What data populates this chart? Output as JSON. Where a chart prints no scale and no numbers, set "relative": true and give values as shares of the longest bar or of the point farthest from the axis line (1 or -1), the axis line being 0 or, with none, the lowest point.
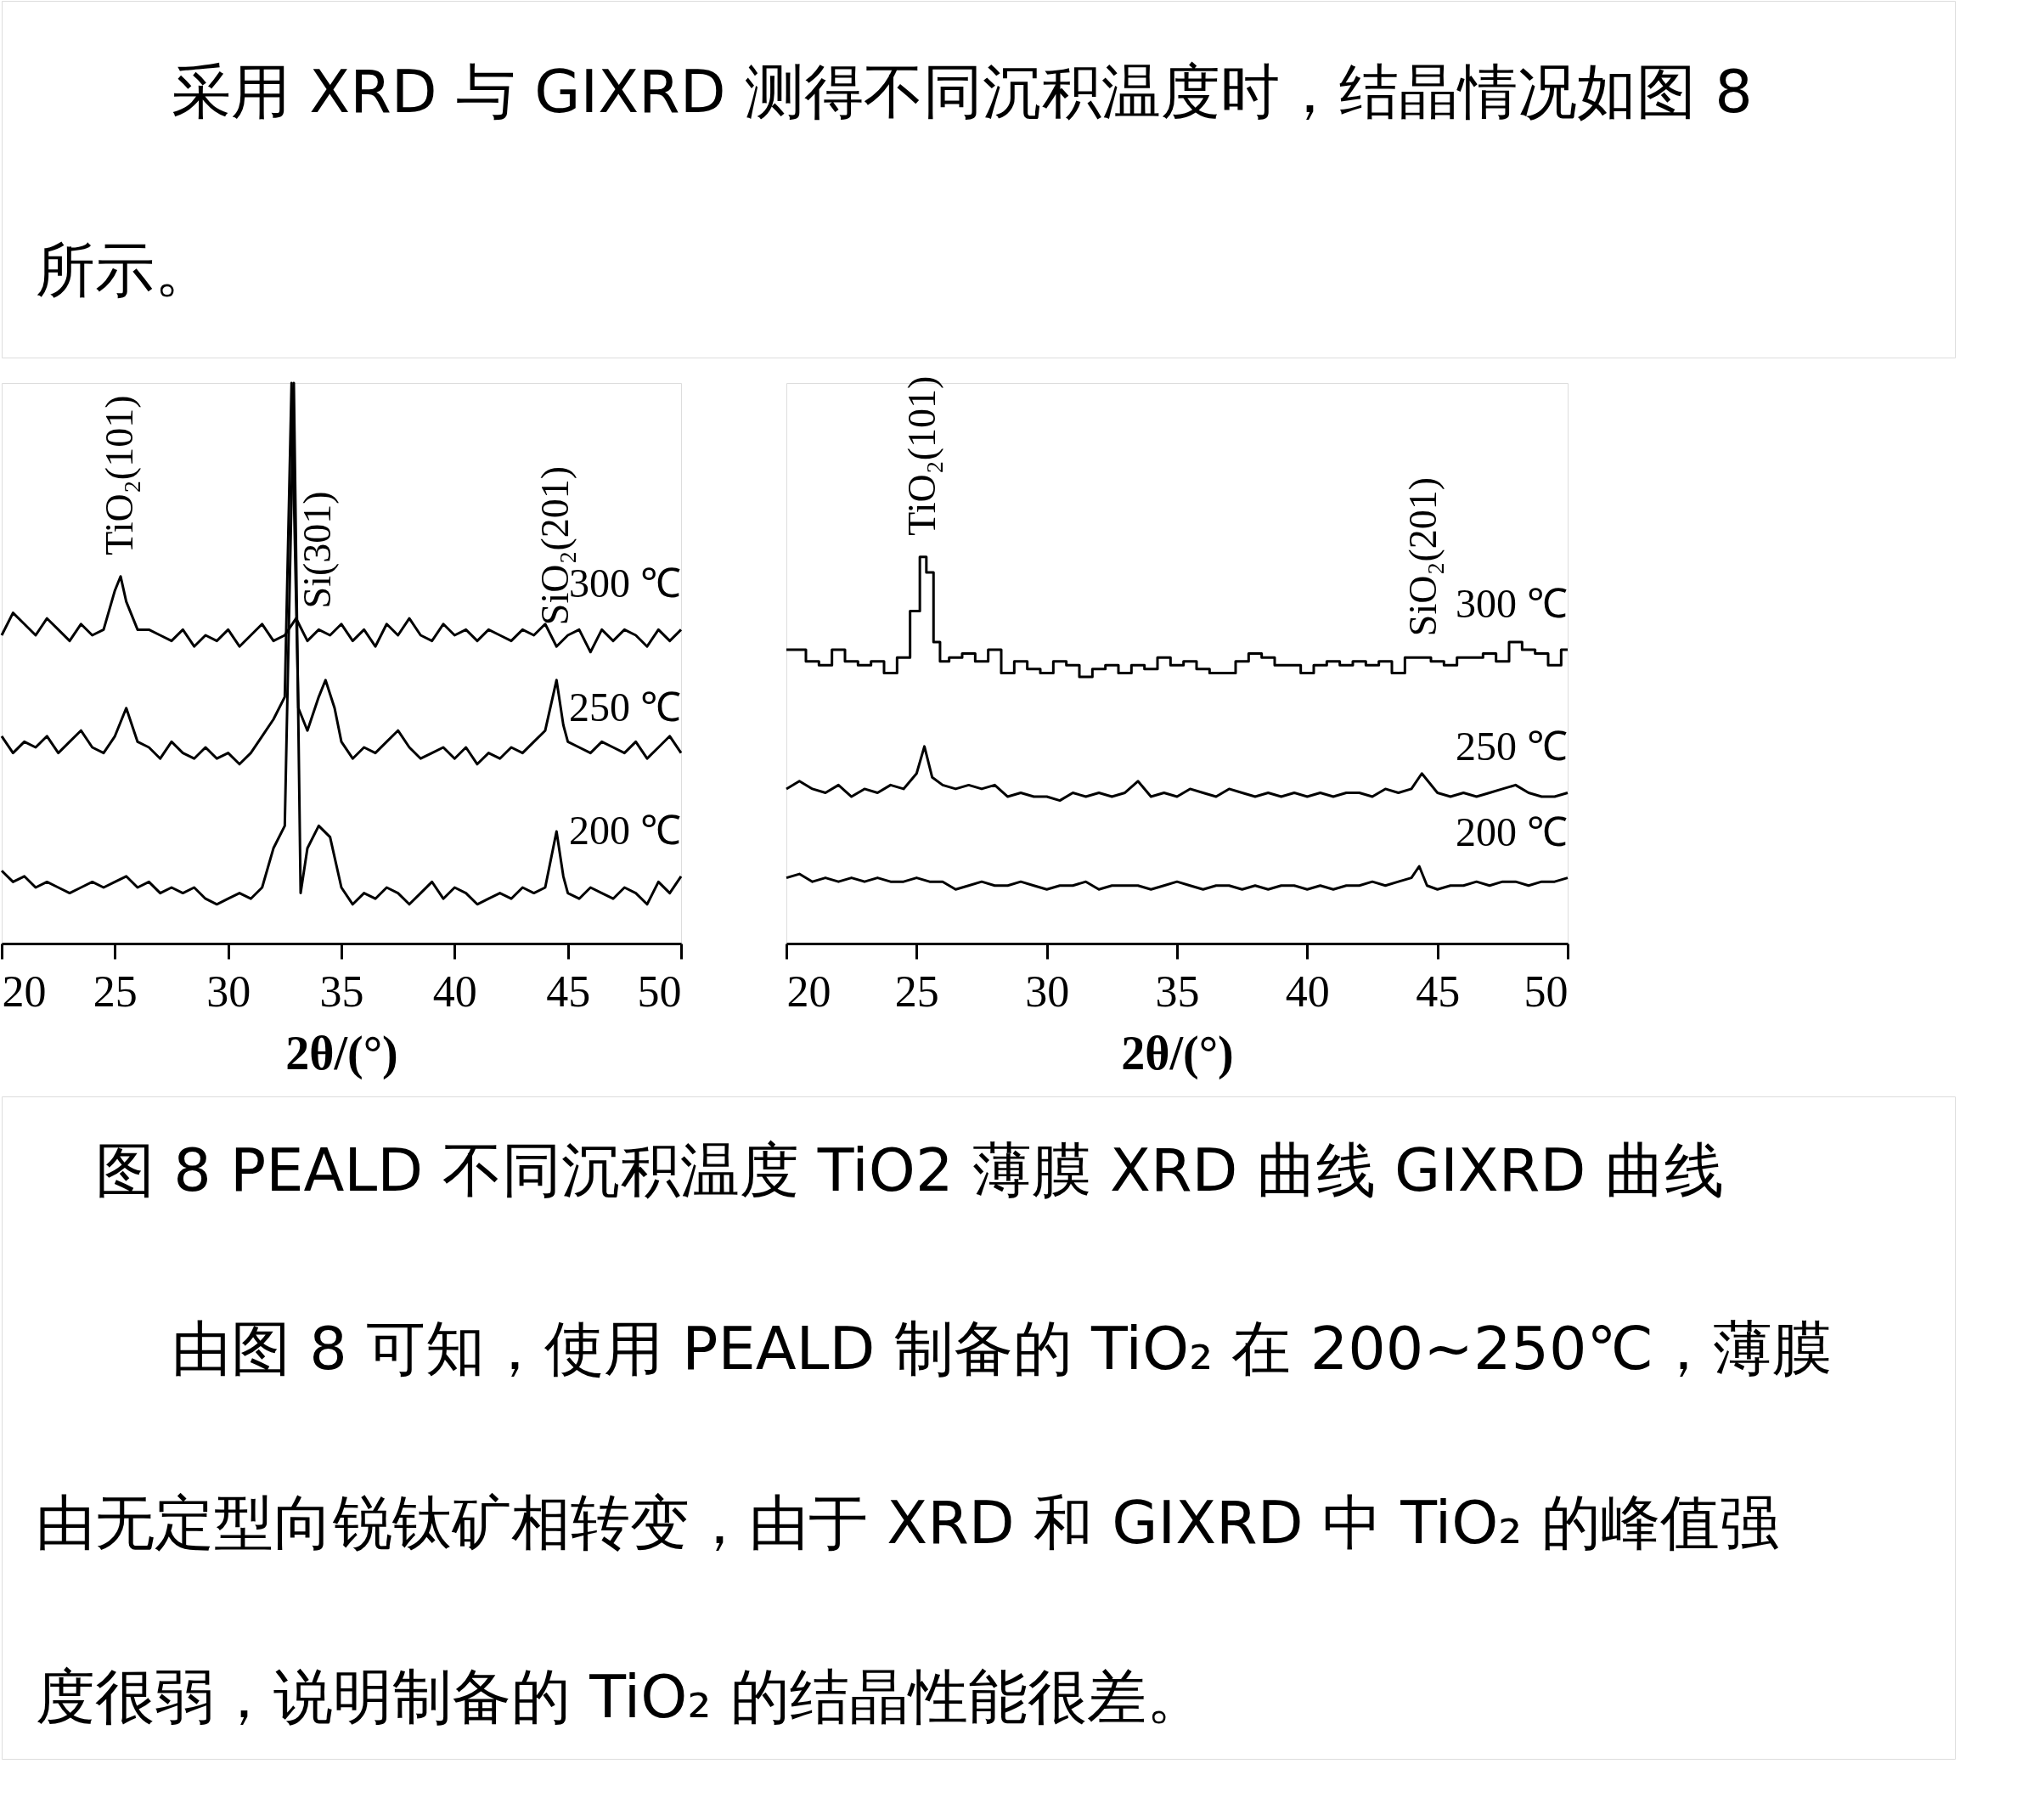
{
  "chart_data": [
    {
      "type": "line",
      "relative": true,
      "xlabel": "2θ/(°)",
      "xlim": [
        20,
        50
      ],
      "xticks": [
        20,
        25,
        30,
        35,
        40,
        45,
        50
      ],
      "series": [
        {
          "name": "300 ℃",
          "color": "#000000",
          "x": [
            20,
            20.5,
            21,
            21.5,
            22,
            22.5,
            23,
            23.5,
            24,
            24.5,
            25,
            25.25,
            25.5,
            26,
            26.5,
            27,
            27.5,
            28,
            28.5,
            29,
            29.5,
            30,
            30.5,
            31,
            31.5,
            32,
            32.5,
            33,
            33.5,
            34,
            34.5,
            35,
            35.5,
            36,
            36.5,
            37,
            37.5,
            38,
            38.5,
            39,
            39.5,
            40,
            40.5,
            41,
            41.5,
            42,
            42.5,
            43,
            43.5,
            44,
            44.5,
            45,
            45.5,
            46,
            46.5,
            47,
            47.5,
            48,
            48.5,
            49,
            49.5,
            50
          ],
          "values": [
            0.55,
            0.59,
            0.57,
            0.55,
            0.58,
            0.56,
            0.54,
            0.57,
            0.55,
            0.56,
            0.63,
            0.655,
            0.61,
            0.56,
            0.56,
            0.55,
            0.54,
            0.56,
            0.53,
            0.55,
            0.54,
            0.56,
            0.53,
            0.55,
            0.57,
            0.54,
            0.55,
            0.58,
            0.54,
            0.56,
            0.55,
            0.57,
            0.54,
            0.56,
            0.53,
            0.57,
            0.55,
            0.58,
            0.55,
            0.54,
            0.57,
            0.55,
            0.56,
            0.54,
            0.56,
            0.55,
            0.54,
            0.56,
            0.55,
            0.57,
            0.53,
            0.55,
            0.56,
            0.52,
            0.56,
            0.54,
            0.56,
            0.55,
            0.53,
            0.56,
            0.54,
            0.56
          ]
        },
        {
          "name": "250 ℃",
          "color": "#000000",
          "x": [
            20,
            20.5,
            21,
            21.5,
            22,
            22.5,
            23,
            23.5,
            24,
            24.5,
            25,
            25.5,
            26,
            26.5,
            27,
            27.5,
            28,
            28.5,
            29,
            29.5,
            30,
            30.5,
            31,
            31.5,
            32,
            32.5,
            32.8,
            33.1,
            33.5,
            34,
            34.3,
            34.7,
            35,
            35.5,
            36,
            36.5,
            37,
            37.5,
            38,
            38.5,
            39,
            39.5,
            40,
            40.5,
            41,
            41.5,
            42,
            42.5,
            43,
            43.5,
            44,
            44.5,
            44.8,
            45,
            45.5,
            46,
            46.5,
            47,
            47.5,
            48,
            48.5,
            49,
            49.5,
            50
          ],
          "values": [
            0.37,
            0.34,
            0.36,
            0.35,
            0.37,
            0.34,
            0.36,
            0.38,
            0.35,
            0.34,
            0.37,
            0.42,
            0.36,
            0.35,
            0.33,
            0.36,
            0.34,
            0.33,
            0.35,
            0.33,
            0.34,
            0.32,
            0.34,
            0.37,
            0.4,
            0.44,
            1.0,
            0.42,
            0.38,
            0.44,
            0.47,
            0.42,
            0.36,
            0.33,
            0.35,
            0.34,
            0.36,
            0.38,
            0.35,
            0.33,
            0.34,
            0.35,
            0.33,
            0.35,
            0.32,
            0.34,
            0.33,
            0.35,
            0.34,
            0.36,
            0.38,
            0.47,
            0.39,
            0.36,
            0.35,
            0.34,
            0.36,
            0.35,
            0.34,
            0.36,
            0.33,
            0.35,
            0.37,
            0.34
          ]
        },
        {
          "name": "200 ℃",
          "color": "#000000",
          "x": [
            20,
            20.5,
            21,
            21.5,
            22,
            22.5,
            23,
            23.5,
            24,
            24.5,
            25,
            25.5,
            26,
            26.5,
            27,
            27.5,
            28,
            28.5,
            29,
            29.5,
            30,
            30.5,
            31,
            31.5,
            32,
            32.5,
            32.9,
            33.2,
            33.5,
            34,
            34.5,
            35,
            35.5,
            36,
            36.5,
            37,
            37.5,
            38,
            38.5,
            39,
            39.5,
            40,
            40.5,
            41,
            41.5,
            42,
            42.5,
            43,
            43.5,
            44,
            44.5,
            44.8,
            45,
            45.5,
            46,
            46.5,
            47,
            47.5,
            48,
            48.5,
            49,
            49.5,
            50
          ],
          "values": [
            0.13,
            0.11,
            0.12,
            0.1,
            0.11,
            0.1,
            0.09,
            0.1,
            0.11,
            0.1,
            0.11,
            0.12,
            0.1,
            0.11,
            0.09,
            0.1,
            0.09,
            0.1,
            0.08,
            0.07,
            0.08,
            0.09,
            0.08,
            0.1,
            0.17,
            0.21,
            1.0,
            0.09,
            0.17,
            0.21,
            0.19,
            0.1,
            0.07,
            0.09,
            0.08,
            0.1,
            0.09,
            0.07,
            0.09,
            0.11,
            0.08,
            0.1,
            0.09,
            0.07,
            0.08,
            0.09,
            0.08,
            0.1,
            0.09,
            0.1,
            0.2,
            0.12,
            0.09,
            0.08,
            0.1,
            0.09,
            0.08,
            0.1,
            0.09,
            0.07,
            0.11,
            0.09,
            0.12
          ]
        }
      ],
      "annotations": [
        "采用 XRD 与 GIXRD 测得不同沉积温度时，结晶情况如图 8",
        "所示。",
        "图 8 PEALD 不同沉积温度 TiO2 薄膜 XRD 曲线  GIXRD 曲线",
        "由图 8 可知，使用 PEALD 制备的 TiO₂ 在 200~250℃，薄膜",
        "由无定型向锐钛矿相转变，由于 XRD 和 GIXRD 中 TiO₂ 的峰值强",
        "度很弱，说明制备的 TiO₂ 的结晶性能很差。",
        {
          "text": "TiO₂(101)",
          "x": 25.25,
          "y": 0.655
        },
        {
          "text": "Si(301)",
          "x": 34,
          "y": 0.56
        },
        {
          "text": "SiO₂(201)",
          "x": 44.5,
          "y": 0.53
        }
      ]
    },
    {
      "type": "line",
      "relative": true,
      "xlabel": "2θ/(°)",
      "xlim": [
        20,
        50
      ],
      "xticks": [
        20,
        25,
        30,
        35,
        40,
        45,
        50
      ],
      "series": [
        {
          "name": "300 ℃",
          "color": "#000000",
          "type": "step",
          "x": [
            20,
            20.5,
            21,
            21.5,
            22,
            22.5,
            23,
            23.5,
            24,
            24.5,
            25,
            25.25,
            25.5,
            25.8,
            26,
            26.5,
            27,
            27.5,
            28,
            28.5,
            29,
            29.5,
            30,
            30.5,
            31,
            31.5,
            32,
            32.5,
            33,
            33.5,
            34,
            34.5,
            35,
            35.5,
            36,
            36.5,
            37,
            37.5,
            38,
            38.5,
            39,
            39.5,
            40,
            40.5,
            41,
            41.5,
            42,
            42.5,
            43,
            43.5,
            44,
            44.5,
            45,
            45.5,
            46,
            46.5,
            47,
            47.5,
            48,
            48.5,
            49,
            49.5,
            50
          ],
          "values": [
            0.76,
            0.76,
            0.73,
            0.72,
            0.76,
            0.73,
            0.72,
            0.73,
            0.7,
            0.74,
            0.86,
            1.0,
            0.96,
            0.78,
            0.73,
            0.74,
            0.75,
            0.73,
            0.76,
            0.7,
            0.73,
            0.71,
            0.7,
            0.73,
            0.72,
            0.69,
            0.71,
            0.72,
            0.7,
            0.72,
            0.71,
            0.74,
            0.72,
            0.73,
            0.71,
            0.7,
            0.7,
            0.73,
            0.75,
            0.74,
            0.72,
            0.72,
            0.7,
            0.72,
            0.73,
            0.72,
            0.73,
            0.72,
            0.73,
            0.7,
            0.74,
            0.74,
            0.73,
            0.72,
            0.74,
            0.74,
            0.75,
            0.73,
            0.78,
            0.76,
            0.75,
            0.72,
            0.76
          ]
        },
        {
          "name": "250 ℃",
          "color": "#000000",
          "x": [
            20,
            20.5,
            21,
            21.5,
            22,
            22.5,
            23,
            23.5,
            24,
            24.5,
            25,
            25.3,
            25.6,
            26,
            26.5,
            27,
            27.5,
            28,
            28.5,
            29,
            29.5,
            30,
            30.5,
            31,
            31.5,
            32,
            32.5,
            33,
            33.5,
            34,
            34.5,
            35,
            35.5,
            36,
            36.5,
            37,
            37.5,
            38,
            38.5,
            39,
            39.5,
            40,
            40.5,
            41,
            41.5,
            42,
            42.5,
            43,
            43.5,
            44,
            44.4,
            45,
            45.5,
            46,
            46.5,
            47,
            47.5,
            48,
            48.5,
            49,
            49.5,
            50
          ],
          "values": [
            0.4,
            0.42,
            0.4,
            0.39,
            0.41,
            0.38,
            0.4,
            0.39,
            0.41,
            0.4,
            0.44,
            0.51,
            0.43,
            0.41,
            0.4,
            0.41,
            0.4,
            0.41,
            0.38,
            0.39,
            0.38,
            0.38,
            0.37,
            0.39,
            0.38,
            0.39,
            0.38,
            0.39,
            0.42,
            0.38,
            0.39,
            0.38,
            0.4,
            0.39,
            0.38,
            0.4,
            0.39,
            0.38,
            0.39,
            0.38,
            0.39,
            0.38,
            0.39,
            0.38,
            0.39,
            0.39,
            0.38,
            0.4,
            0.39,
            0.4,
            0.44,
            0.39,
            0.38,
            0.39,
            0.38,
            0.39,
            0.4,
            0.41,
            0.39,
            0.38,
            0.38,
            0.39
          ]
        },
        {
          "name": "200 ℃",
          "color": "#000000",
          "x": [
            20,
            20.5,
            21,
            21.5,
            22,
            22.5,
            23,
            23.5,
            24,
            24.5,
            25,
            25.5,
            26,
            26.5,
            27,
            27.5,
            28,
            28.5,
            29,
            29.5,
            30,
            30.5,
            31,
            31.5,
            32,
            32.5,
            33,
            33.5,
            34,
            34.5,
            35,
            35.5,
            36,
            36.5,
            37,
            37.5,
            38,
            38.5,
            39,
            39.5,
            40,
            40.5,
            41,
            41.5,
            42,
            42.5,
            43,
            43.5,
            44,
            44.3,
            44.6,
            45,
            45.5,
            46,
            46.5,
            47,
            47.5,
            48,
            48.5,
            49,
            49.5,
            50
          ],
          "values": [
            0.17,
            0.18,
            0.16,
            0.17,
            0.16,
            0.17,
            0.16,
            0.17,
            0.16,
            0.16,
            0.17,
            0.16,
            0.16,
            0.14,
            0.15,
            0.16,
            0.15,
            0.15,
            0.16,
            0.15,
            0.14,
            0.15,
            0.15,
            0.16,
            0.14,
            0.15,
            0.15,
            0.15,
            0.14,
            0.15,
            0.16,
            0.15,
            0.14,
            0.15,
            0.15,
            0.14,
            0.15,
            0.14,
            0.15,
            0.15,
            0.14,
            0.15,
            0.14,
            0.15,
            0.15,
            0.16,
            0.15,
            0.16,
            0.17,
            0.2,
            0.15,
            0.14,
            0.15,
            0.15,
            0.16,
            0.15,
            0.16,
            0.16,
            0.15,
            0.16,
            0.16,
            0.17
          ]
        }
      ],
      "annotations": [
        {
          "text": "TiO₂(101)",
          "x": 25.25,
          "y": 1.0
        },
        {
          "text": "SiO₂(201)",
          "x": 44.5,
          "y": 0.74
        }
      ]
    }
  ]
}
